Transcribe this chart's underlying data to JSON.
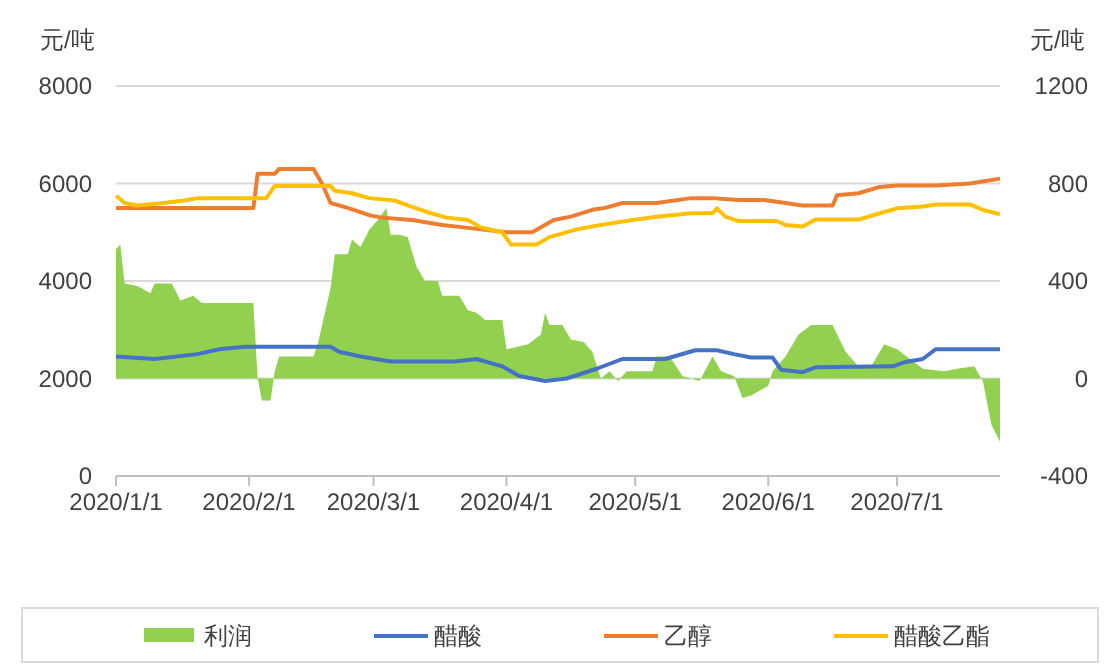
{
  "chart_data": {
    "type": "line",
    "ylabel": "元/吨",
    "y2label": "元/吨",
    "xlim": [
      "2020-01-01",
      "2020-07-25"
    ],
    "xticks": [
      {
        "value": "2020-01-01",
        "label": "2020/1/1"
      },
      {
        "value": "2020-02-01",
        "label": "2020/2/1"
      },
      {
        "value": "2020-03-01",
        "label": "2020/3/1"
      },
      {
        "value": "2020-04-01",
        "label": "2020/4/1"
      },
      {
        "value": "2020-05-01",
        "label": "2020/5/1"
      },
      {
        "value": "2020-06-01",
        "label": "2020/6/1"
      },
      {
        "value": "2020-07-01",
        "label": "2020/7/1"
      }
    ],
    "ylim": [
      0,
      8000
    ],
    "yticks": [
      0,
      2000,
      4000,
      6000,
      8000
    ],
    "y2lim": [
      -400,
      1200
    ],
    "y2ticks": [
      -400,
      0,
      400,
      800,
      1200
    ],
    "grid": "y",
    "legend": "bottom",
    "series": [
      {
        "name": "利润",
        "type": "area",
        "axis": "y2",
        "color": "#92d050",
        "x": [
          "2020-01-01",
          "2020-01-02",
          "2020-01-03",
          "2020-01-06",
          "2020-01-09",
          "2020-01-10",
          "2020-01-14",
          "2020-01-16",
          "2020-01-19",
          "2020-01-21",
          "2020-02-02",
          "2020-02-03",
          "2020-02-04",
          "2020-02-06",
          "2020-02-07",
          "2020-02-08",
          "2020-02-16",
          "2020-02-17",
          "2020-02-20",
          "2020-02-21",
          "2020-02-24",
          "2020-02-25",
          "2020-02-27",
          "2020-02-29",
          "2020-03-02",
          "2020-03-04",
          "2020-03-05",
          "2020-03-07",
          "2020-03-09",
          "2020-03-11",
          "2020-03-13",
          "2020-03-16",
          "2020-03-17",
          "2020-03-21",
          "2020-03-23",
          "2020-03-25",
          "2020-03-27",
          "2020-03-31",
          "2020-04-01",
          "2020-04-06",
          "2020-04-09",
          "2020-04-10",
          "2020-04-11",
          "2020-04-14",
          "2020-04-16",
          "2020-04-19",
          "2020-04-21",
          "2020-04-23",
          "2020-04-25",
          "2020-04-27",
          "2020-04-29",
          "2020-05-05",
          "2020-05-06",
          "2020-05-09",
          "2020-05-12",
          "2020-05-16",
          "2020-05-19",
          "2020-05-21",
          "2020-05-24",
          "2020-05-26",
          "2020-05-28",
          "2020-06-01",
          "2020-06-02",
          "2020-06-05",
          "2020-06-08",
          "2020-06-11",
          "2020-06-16",
          "2020-06-19",
          "2020-06-22",
          "2020-06-25",
          "2020-06-28",
          "2020-07-01",
          "2020-07-04",
          "2020-07-07",
          "2020-07-12",
          "2020-07-15",
          "2020-07-19",
          "2020-07-21",
          "2020-07-23",
          "2020-07-25"
        ],
        "values": [
          530,
          550,
          390,
          380,
          350,
          390,
          390,
          320,
          340,
          310,
          310,
          0,
          -90,
          -90,
          30,
          90,
          90,
          140,
          370,
          510,
          510,
          570,
          540,
          610,
          650,
          700,
          590,
          590,
          580,
          460,
          400,
          400,
          340,
          340,
          280,
          270,
          240,
          240,
          120,
          140,
          180,
          270,
          220,
          220,
          160,
          150,
          110,
          0,
          30,
          -10,
          30,
          30,
          90,
          90,
          10,
          -10,
          90,
          30,
          10,
          -80,
          -70,
          -30,
          30,
          90,
          180,
          220,
          220,
          110,
          50,
          50,
          140,
          120,
          80,
          40,
          30,
          40,
          50,
          -10,
          -190,
          -260
        ]
      },
      {
        "name": "醋酸",
        "color": "#4472c4",
        "x": [
          "2020-01-01",
          "2020-01-10",
          "2020-01-20",
          "2020-01-25",
          "2020-01-31",
          "2020-02-20",
          "2020-02-22",
          "2020-02-27",
          "2020-03-05",
          "2020-03-20",
          "2020-03-25",
          "2020-03-31",
          "2020-04-04",
          "2020-04-10",
          "2020-04-15",
          "2020-04-22",
          "2020-04-28",
          "2020-05-08",
          "2020-05-15",
          "2020-05-20",
          "2020-05-24",
          "2020-05-28",
          "2020-06-02",
          "2020-06-04",
          "2020-06-09",
          "2020-06-12",
          "2020-06-30",
          "2020-07-03",
          "2020-07-07",
          "2020-07-10",
          "2020-07-25"
        ],
        "values": [
          2450,
          2400,
          2500,
          2600,
          2650,
          2650,
          2550,
          2450,
          2350,
          2350,
          2400,
          2250,
          2050,
          1950,
          2000,
          2200,
          2400,
          2400,
          2580,
          2580,
          2500,
          2430,
          2430,
          2180,
          2130,
          2230,
          2250,
          2340,
          2400,
          2600,
          2600
        ]
      },
      {
        "name": "乙醇",
        "color": "#ed7d31",
        "x": [
          "2020-01-01",
          "2020-02-02",
          "2020-02-03",
          "2020-02-07",
          "2020-02-08",
          "2020-02-16",
          "2020-02-18",
          "2020-02-20",
          "2020-02-24",
          "2020-02-29",
          "2020-03-03",
          "2020-03-10",
          "2020-03-17",
          "2020-03-22",
          "2020-04-01",
          "2020-04-07",
          "2020-04-08",
          "2020-04-12",
          "2020-04-16",
          "2020-04-21",
          "2020-04-24",
          "2020-04-28",
          "2020-05-06",
          "2020-05-14",
          "2020-05-19",
          "2020-05-25",
          "2020-05-31",
          "2020-06-05",
          "2020-06-09",
          "2020-06-16",
          "2020-06-17",
          "2020-06-22",
          "2020-06-27",
          "2020-07-01",
          "2020-07-10",
          "2020-07-18",
          "2020-07-25"
        ],
        "values": [
          5500,
          5500,
          6200,
          6200,
          6300,
          6300,
          6000,
          5600,
          5500,
          5350,
          5300,
          5250,
          5150,
          5100,
          5000,
          5000,
          5050,
          5250,
          5320,
          5460,
          5500,
          5600,
          5600,
          5700,
          5700,
          5660,
          5660,
          5600,
          5550,
          5550,
          5760,
          5800,
          5930,
          5960,
          5960,
          6000,
          6100
        ]
      },
      {
        "name": "醋酸乙酯",
        "color": "#ffc000",
        "x": [
          "2020-01-01",
          "2020-01-03",
          "2020-01-06",
          "2020-01-12",
          "2020-01-17",
          "2020-01-20",
          "2020-02-05",
          "2020-02-07",
          "2020-02-20",
          "2020-02-21",
          "2020-02-25",
          "2020-02-29",
          "2020-03-06",
          "2020-03-09",
          "2020-03-14",
          "2020-03-18",
          "2020-03-23",
          "2020-03-26",
          "2020-03-31",
          "2020-04-02",
          "2020-04-08",
          "2020-04-11",
          "2020-04-17",
          "2020-04-21",
          "2020-04-28",
          "2020-05-06",
          "2020-05-14",
          "2020-05-19",
          "2020-05-20",
          "2020-05-22",
          "2020-05-25",
          "2020-06-03",
          "2020-06-05",
          "2020-06-09",
          "2020-06-12",
          "2020-06-22",
          "2020-06-27",
          "2020-07-01",
          "2020-07-07",
          "2020-07-10",
          "2020-07-18",
          "2020-07-21",
          "2020-07-25"
        ],
        "values": [
          5750,
          5600,
          5550,
          5600,
          5650,
          5700,
          5700,
          5950,
          5950,
          5850,
          5800,
          5700,
          5650,
          5550,
          5400,
          5300,
          5250,
          5100,
          5000,
          4750,
          4750,
          4900,
          5050,
          5120,
          5220,
          5320,
          5390,
          5390,
          5490,
          5320,
          5230,
          5230,
          5150,
          5120,
          5260,
          5260,
          5390,
          5490,
          5530,
          5570,
          5570,
          5460,
          5370
        ]
      }
    ]
  }
}
